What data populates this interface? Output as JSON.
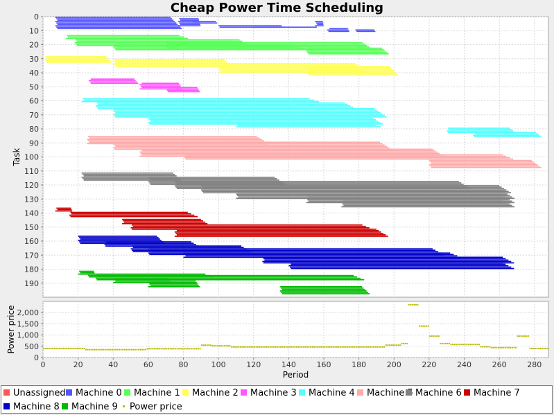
{
  "title": "Cheap Power Time Scheduling",
  "chart_data": [
    {
      "type": "gantt",
      "title": "Cheap Power Time Scheduling",
      "ylabel": "Task",
      "xlim": [
        0,
        288
      ],
      "ylim": [
        0,
        200
      ],
      "y_inverted": true,
      "y_ticks": [
        0,
        10,
        20,
        30,
        40,
        50,
        60,
        70,
        80,
        90,
        100,
        110,
        120,
        130,
        140,
        150,
        160,
        170,
        180,
        190
      ],
      "legend_position": "bottom",
      "series": [
        {
          "name": "Unassigned",
          "color": "#ff5555",
          "style": "square"
        },
        {
          "name": "Machine 0",
          "color": "#5555ff",
          "style": "square",
          "bars": [
            [
              7,
              80,
              0,
              9
            ],
            [
              77,
              90,
              1,
              7
            ],
            [
              85,
              100,
              3,
              5
            ],
            [
              100,
              140,
              6,
              8
            ],
            [
              120,
              160,
              7,
              8
            ],
            [
              155,
              160,
              3,
              7
            ],
            [
              162,
              175,
              8,
              11
            ],
            [
              178,
              190,
              9,
              11
            ]
          ]
        },
        {
          "name": "Machine 1",
          "color": "#55ff55",
          "style": "square",
          "bars": [
            [
              13,
              85,
              13,
              16
            ],
            [
              18,
              120,
              16,
              21
            ],
            [
              40,
              150,
              20,
              24
            ],
            [
              70,
              190,
              18,
              24
            ],
            [
              150,
              198,
              22,
              27
            ]
          ]
        },
        {
          "name": "Machine 2",
          "color": "#ffff55",
          "style": "square",
          "bars": [
            [
              1,
              40,
              28,
              33
            ],
            [
              40,
              110,
              30,
              36
            ],
            [
              100,
              186,
              33,
              40
            ],
            [
              150,
              203,
              35,
              42
            ]
          ]
        },
        {
          "name": "Machine 3",
          "color": "#ff55ff",
          "style": "square",
          "bars": [
            [
              26,
              55,
              44,
              48
            ],
            [
              55,
              80,
              47,
              52
            ],
            [
              70,
              90,
              50,
              54
            ]
          ]
        },
        {
          "name": "Machine 4",
          "color": "#55ffff",
          "style": "square",
          "bars": [
            [
              22,
              160,
              58,
              61
            ],
            [
              30,
              180,
              61,
              66
            ],
            [
              40,
              197,
              65,
              72
            ],
            [
              60,
              195,
              71,
              77
            ],
            [
              110,
              195,
              76,
              79
            ],
            [
              230,
              270,
              79,
              83
            ],
            [
              245,
              285,
              82,
              86
            ]
          ]
        },
        {
          "name": "Machine 5",
          "color": "#ffaaaa",
          "style": "square",
          "bars": [
            [
              25,
              130,
              85,
              91
            ],
            [
              40,
              200,
              89,
              95
            ],
            [
              55,
              230,
              94,
              100
            ],
            [
              80,
              270,
              98,
              102
            ],
            [
              220,
              285,
              102,
              108
            ]
          ]
        },
        {
          "name": "Machine 6",
          "color": "#808080",
          "style": "square",
          "bars": [
            [
              22,
              80,
              111,
              117
            ],
            [
              60,
              140,
              114,
              120
            ],
            [
              75,
              245,
              117,
              123
            ],
            [
              90,
              268,
              120,
              126
            ],
            [
              110,
              270,
              124,
              130
            ],
            [
              150,
              270,
              127,
              133
            ],
            [
              170,
              270,
              130,
              136
            ]
          ]
        },
        {
          "name": "Machine 7",
          "color": "#cc0000",
          "style": "square",
          "bars": [
            [
              7,
              17,
              136,
              139
            ],
            [
              15,
              90,
              139,
              143
            ],
            [
              45,
              95,
              144,
              148
            ],
            [
              50,
              190,
              148,
              152
            ],
            [
              75,
              198,
              151,
              157
            ]
          ]
        },
        {
          "name": "Machine 8",
          "color": "#0000cc",
          "style": "square",
          "bars": [
            [
              20,
              70,
              156,
              162
            ],
            [
              35,
              90,
              160,
              164
            ],
            [
              50,
              120,
              163,
              168
            ],
            [
              60,
              230,
              165,
              170
            ],
            [
              80,
              240,
              168,
              172
            ],
            [
              125,
              270,
              171,
              176
            ],
            [
              140,
              270,
              175,
              180
            ]
          ]
        },
        {
          "name": "Machine 9",
          "color": "#00bb00",
          "style": "square",
          "bars": [
            [
              20,
              30,
              181,
              184
            ],
            [
              25,
              100,
              183,
              186
            ],
            [
              30,
              185,
              184,
              188
            ],
            [
              40,
              75,
              187,
              190
            ],
            [
              60,
              90,
              188,
              193
            ],
            [
              135,
              187,
              192,
              198
            ]
          ]
        }
      ]
    },
    {
      "type": "scatter",
      "ylabel": "Power price",
      "xlabel": "Period",
      "xlim": [
        0,
        288
      ],
      "ylim": [
        0,
        2500
      ],
      "x_ticks": [
        0,
        20,
        40,
        60,
        80,
        100,
        120,
        140,
        160,
        180,
        200,
        220,
        240,
        260,
        280
      ],
      "y_ticks": [
        0,
        500,
        1000,
        1500,
        2000
      ],
      "y_tick_labels": [
        "0",
        "500",
        "1,000",
        "1,500",
        "2,000"
      ],
      "series": [
        {
          "name": "Power price",
          "color": "#bbbb00",
          "style": "dot",
          "segments": [
            [
              0,
              24,
              400
            ],
            [
              24,
              59,
              350
            ],
            [
              59,
              90,
              390
            ],
            [
              90,
              96,
              550
            ],
            [
              96,
              107,
              520
            ],
            [
              107,
              195,
              470
            ],
            [
              195,
              204,
              550
            ],
            [
              204,
              208,
              620
            ],
            [
              208,
              214,
              2350
            ],
            [
              214,
              220,
              1400
            ],
            [
              220,
              226,
              950
            ],
            [
              226,
              232,
              620
            ],
            [
              232,
              249,
              580
            ],
            [
              249,
              255,
              480
            ],
            [
              255,
              270,
              440
            ],
            [
              270,
              277,
              950
            ],
            [
              277,
              288,
              400
            ]
          ]
        }
      ]
    }
  ]
}
